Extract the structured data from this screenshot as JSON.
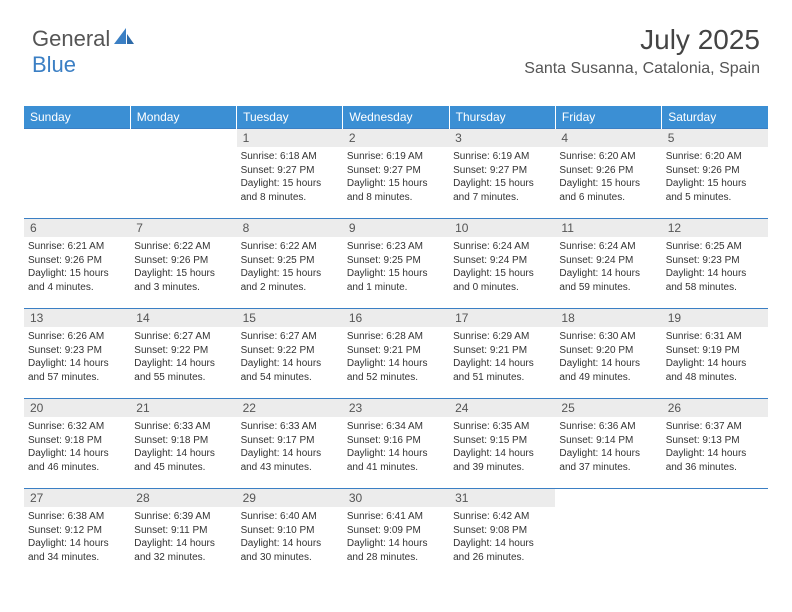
{
  "brand": {
    "part1": "General",
    "part2": "Blue"
  },
  "header": {
    "month_title": "July 2025",
    "location": "Santa Susanna, Catalonia, Spain"
  },
  "colors": {
    "header_bg": "#3b8fd4",
    "header_text": "#ffffff",
    "daynum_bg": "#ececec",
    "rule": "#3b7fc4",
    "text": "#333333",
    "logo_blue": "#3b7fc4"
  },
  "weekdays": [
    "Sunday",
    "Monday",
    "Tuesday",
    "Wednesday",
    "Thursday",
    "Friday",
    "Saturday"
  ],
  "weeks": [
    [
      {
        "n": "",
        "sr": "",
        "ss": "",
        "dl": ""
      },
      {
        "n": "",
        "sr": "",
        "ss": "",
        "dl": ""
      },
      {
        "n": "1",
        "sr": "Sunrise: 6:18 AM",
        "ss": "Sunset: 9:27 PM",
        "dl": "Daylight: 15 hours and 8 minutes."
      },
      {
        "n": "2",
        "sr": "Sunrise: 6:19 AM",
        "ss": "Sunset: 9:27 PM",
        "dl": "Daylight: 15 hours and 8 minutes."
      },
      {
        "n": "3",
        "sr": "Sunrise: 6:19 AM",
        "ss": "Sunset: 9:27 PM",
        "dl": "Daylight: 15 hours and 7 minutes."
      },
      {
        "n": "4",
        "sr": "Sunrise: 6:20 AM",
        "ss": "Sunset: 9:26 PM",
        "dl": "Daylight: 15 hours and 6 minutes."
      },
      {
        "n": "5",
        "sr": "Sunrise: 6:20 AM",
        "ss": "Sunset: 9:26 PM",
        "dl": "Daylight: 15 hours and 5 minutes."
      }
    ],
    [
      {
        "n": "6",
        "sr": "Sunrise: 6:21 AM",
        "ss": "Sunset: 9:26 PM",
        "dl": "Daylight: 15 hours and 4 minutes."
      },
      {
        "n": "7",
        "sr": "Sunrise: 6:22 AM",
        "ss": "Sunset: 9:26 PM",
        "dl": "Daylight: 15 hours and 3 minutes."
      },
      {
        "n": "8",
        "sr": "Sunrise: 6:22 AM",
        "ss": "Sunset: 9:25 PM",
        "dl": "Daylight: 15 hours and 2 minutes."
      },
      {
        "n": "9",
        "sr": "Sunrise: 6:23 AM",
        "ss": "Sunset: 9:25 PM",
        "dl": "Daylight: 15 hours and 1 minute."
      },
      {
        "n": "10",
        "sr": "Sunrise: 6:24 AM",
        "ss": "Sunset: 9:24 PM",
        "dl": "Daylight: 15 hours and 0 minutes."
      },
      {
        "n": "11",
        "sr": "Sunrise: 6:24 AM",
        "ss": "Sunset: 9:24 PM",
        "dl": "Daylight: 14 hours and 59 minutes."
      },
      {
        "n": "12",
        "sr": "Sunrise: 6:25 AM",
        "ss": "Sunset: 9:23 PM",
        "dl": "Daylight: 14 hours and 58 minutes."
      }
    ],
    [
      {
        "n": "13",
        "sr": "Sunrise: 6:26 AM",
        "ss": "Sunset: 9:23 PM",
        "dl": "Daylight: 14 hours and 57 minutes."
      },
      {
        "n": "14",
        "sr": "Sunrise: 6:27 AM",
        "ss": "Sunset: 9:22 PM",
        "dl": "Daylight: 14 hours and 55 minutes."
      },
      {
        "n": "15",
        "sr": "Sunrise: 6:27 AM",
        "ss": "Sunset: 9:22 PM",
        "dl": "Daylight: 14 hours and 54 minutes."
      },
      {
        "n": "16",
        "sr": "Sunrise: 6:28 AM",
        "ss": "Sunset: 9:21 PM",
        "dl": "Daylight: 14 hours and 52 minutes."
      },
      {
        "n": "17",
        "sr": "Sunrise: 6:29 AM",
        "ss": "Sunset: 9:21 PM",
        "dl": "Daylight: 14 hours and 51 minutes."
      },
      {
        "n": "18",
        "sr": "Sunrise: 6:30 AM",
        "ss": "Sunset: 9:20 PM",
        "dl": "Daylight: 14 hours and 49 minutes."
      },
      {
        "n": "19",
        "sr": "Sunrise: 6:31 AM",
        "ss": "Sunset: 9:19 PM",
        "dl": "Daylight: 14 hours and 48 minutes."
      }
    ],
    [
      {
        "n": "20",
        "sr": "Sunrise: 6:32 AM",
        "ss": "Sunset: 9:18 PM",
        "dl": "Daylight: 14 hours and 46 minutes."
      },
      {
        "n": "21",
        "sr": "Sunrise: 6:33 AM",
        "ss": "Sunset: 9:18 PM",
        "dl": "Daylight: 14 hours and 45 minutes."
      },
      {
        "n": "22",
        "sr": "Sunrise: 6:33 AM",
        "ss": "Sunset: 9:17 PM",
        "dl": "Daylight: 14 hours and 43 minutes."
      },
      {
        "n": "23",
        "sr": "Sunrise: 6:34 AM",
        "ss": "Sunset: 9:16 PM",
        "dl": "Daylight: 14 hours and 41 minutes."
      },
      {
        "n": "24",
        "sr": "Sunrise: 6:35 AM",
        "ss": "Sunset: 9:15 PM",
        "dl": "Daylight: 14 hours and 39 minutes."
      },
      {
        "n": "25",
        "sr": "Sunrise: 6:36 AM",
        "ss": "Sunset: 9:14 PM",
        "dl": "Daylight: 14 hours and 37 minutes."
      },
      {
        "n": "26",
        "sr": "Sunrise: 6:37 AM",
        "ss": "Sunset: 9:13 PM",
        "dl": "Daylight: 14 hours and 36 minutes."
      }
    ],
    [
      {
        "n": "27",
        "sr": "Sunrise: 6:38 AM",
        "ss": "Sunset: 9:12 PM",
        "dl": "Daylight: 14 hours and 34 minutes."
      },
      {
        "n": "28",
        "sr": "Sunrise: 6:39 AM",
        "ss": "Sunset: 9:11 PM",
        "dl": "Daylight: 14 hours and 32 minutes."
      },
      {
        "n": "29",
        "sr": "Sunrise: 6:40 AM",
        "ss": "Sunset: 9:10 PM",
        "dl": "Daylight: 14 hours and 30 minutes."
      },
      {
        "n": "30",
        "sr": "Sunrise: 6:41 AM",
        "ss": "Sunset: 9:09 PM",
        "dl": "Daylight: 14 hours and 28 minutes."
      },
      {
        "n": "31",
        "sr": "Sunrise: 6:42 AM",
        "ss": "Sunset: 9:08 PM",
        "dl": "Daylight: 14 hours and 26 minutes."
      },
      {
        "n": "",
        "sr": "",
        "ss": "",
        "dl": ""
      },
      {
        "n": "",
        "sr": "",
        "ss": "",
        "dl": ""
      }
    ]
  ]
}
